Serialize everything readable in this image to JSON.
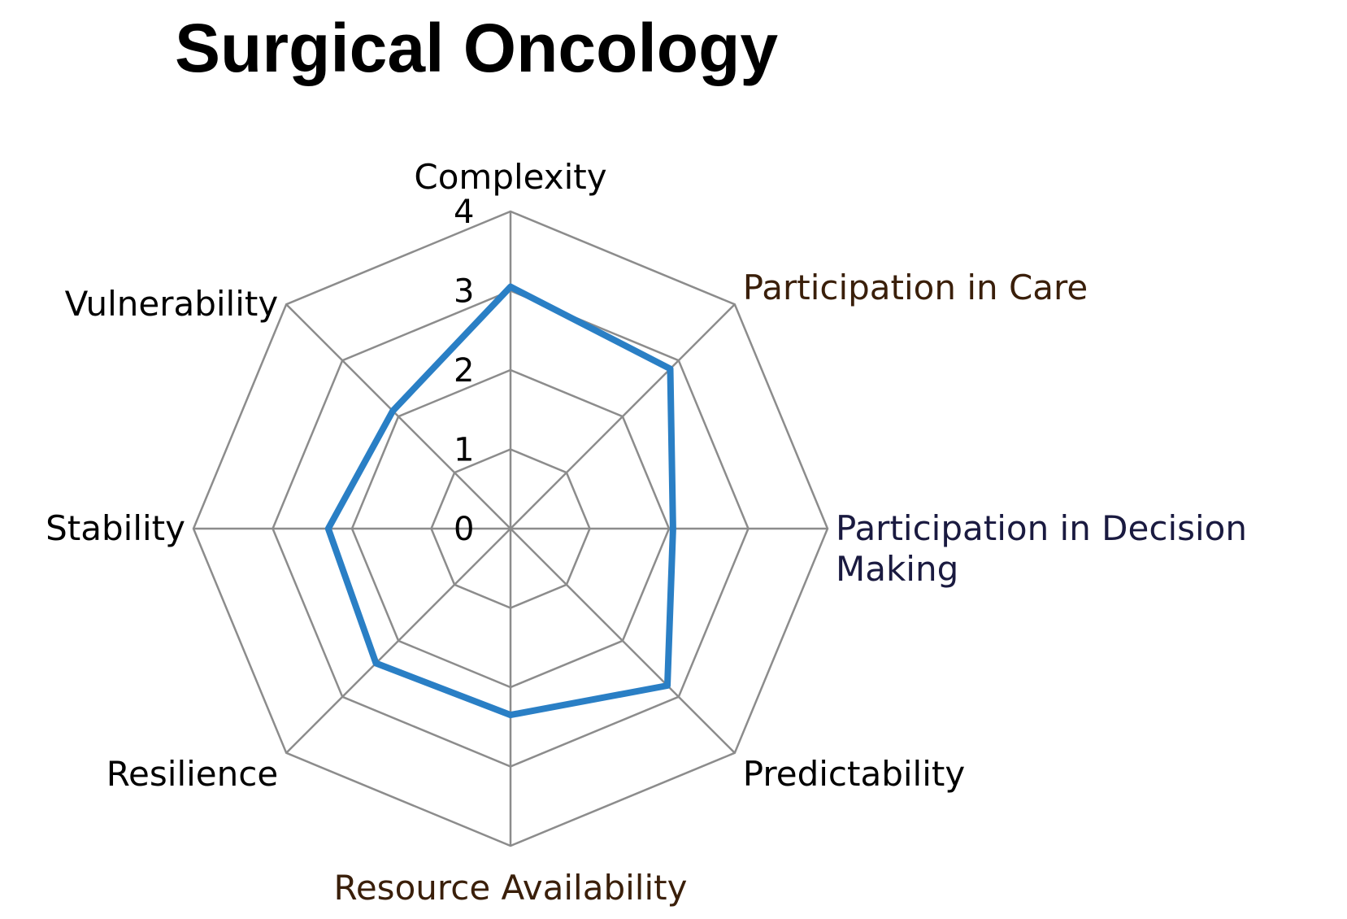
{
  "chart_data": {
    "type": "radar",
    "title": "Surgical Oncology",
    "axes": [
      "Complexity",
      "Participation in Care",
      "Participation in Decision Making",
      "Predictability",
      "Resource Availability",
      "Resilience",
      "Stability",
      "Vulnerability"
    ],
    "axis_label_lines": [
      [
        "Complexity"
      ],
      [
        "Participation in Care"
      ],
      [
        "Participation in Decision",
        "Making"
      ],
      [
        "Predictability"
      ],
      [
        "Resource Availability"
      ],
      [
        "Resilience"
      ],
      [
        "Stability"
      ],
      [
        "Vulnerability"
      ]
    ],
    "axis_label_colors": [
      "#000000",
      "#3a1f0a",
      "#1a1a40",
      "#000000",
      "#3a1f0a",
      "#000000",
      "#000000",
      "#000000"
    ],
    "ticks": [
      "0",
      "1",
      "2",
      "3",
      "4"
    ],
    "rmin": 0,
    "rmax": 4,
    "grid": true,
    "legend": "none",
    "series": [
      {
        "values": [
          3.05,
          2.85,
          2.05,
          2.8,
          2.35,
          2.4,
          2.3,
          2.1
        ],
        "color": "#2a7fc5"
      }
    ]
  }
}
